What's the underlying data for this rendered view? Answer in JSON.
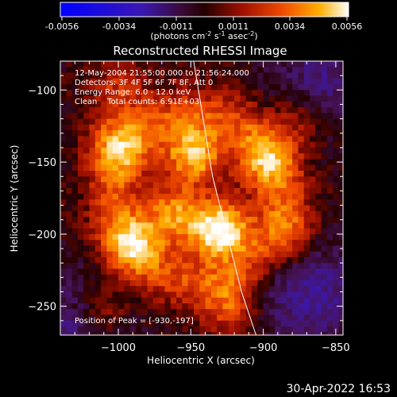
{
  "colorbar": {
    "ticks": [
      "-0.0056",
      "-0.0034",
      "-0.0011",
      "0.0011",
      "0.0034",
      "0.0056"
    ],
    "unit_label": "(photons cm",
    "unit_exp1": "-2",
    "unit_mid": " s",
    "unit_exp2": "-1",
    "unit_end": " asec",
    "unit_exp3": "-2",
    "unit_close": ")"
  },
  "info": {
    "line1": "12-May-2004 21:55:00.000 to 21:56:24.000",
    "line2": "Detectors: 3F 4F 5F 6F 7F 8F, Att 0",
    "line3": "Energy Range: 6.0 - 12.0 keV",
    "line4": "Clean    Total counts: 6.91E+03",
    "peak": "Position of Peak = [-930,-197]"
  },
  "timestamp": "30-Apr-2022 16:53",
  "colors": {
    "plot_background": "#000000",
    "axis": "#ffffff",
    "limb": "#ffffff"
  },
  "chart_data": {
    "type": "heatmap",
    "title": "Reconstructed RHESSI Image",
    "xlabel": "Heliocentric X (arcsec)",
    "ylabel": "Heliocentric Y (arcsec)",
    "xlim": [
      -1040,
      -845
    ],
    "ylim": [
      -270,
      -80
    ],
    "x_ticks": [
      -1000,
      -950,
      -900,
      -850
    ],
    "y_ticks": [
      -100,
      -150,
      -200,
      -250
    ],
    "x_tick_labels": [
      "−1000",
      "−950",
      "−900",
      "−850"
    ],
    "y_tick_labels": [
      "−100",
      "−150",
      "−200",
      "−250"
    ],
    "colorbar_range": [
      -0.0056,
      0.0056
    ],
    "colormap": "rhessi_hot",
    "peak_position": [
      -930,
      -197
    ],
    "sources": [
      {
        "x": -930,
        "y": -197,
        "peak": 0.0058
      },
      {
        "x": -948,
        "y": -146,
        "peak": 0.0044
      },
      {
        "x": -962,
        "y": -186,
        "peak": 0.0036
      },
      {
        "x": -1002,
        "y": -138,
        "peak": 0.003
      },
      {
        "x": -990,
        "y": -206,
        "peak": 0.003
      },
      {
        "x": -900,
        "y": -150,
        "peak": 0.0027
      },
      {
        "x": -922,
        "y": -252,
        "peak": 0.0026
      },
      {
        "x": -1010,
        "y": -255,
        "peak": 0.0022
      },
      {
        "x": -1000,
        "y": -98,
        "peak": 0.002
      },
      {
        "x": -880,
        "y": -200,
        "peak": 0.002
      },
      {
        "x": -875,
        "y": -120,
        "peak": 0.0018
      }
    ],
    "limb_line": [
      [
        -948,
        -80
      ],
      [
        -935,
        -160
      ],
      [
        -925,
        -200
      ],
      [
        -915,
        -240
      ],
      [
        -905,
        -270
      ]
    ]
  }
}
